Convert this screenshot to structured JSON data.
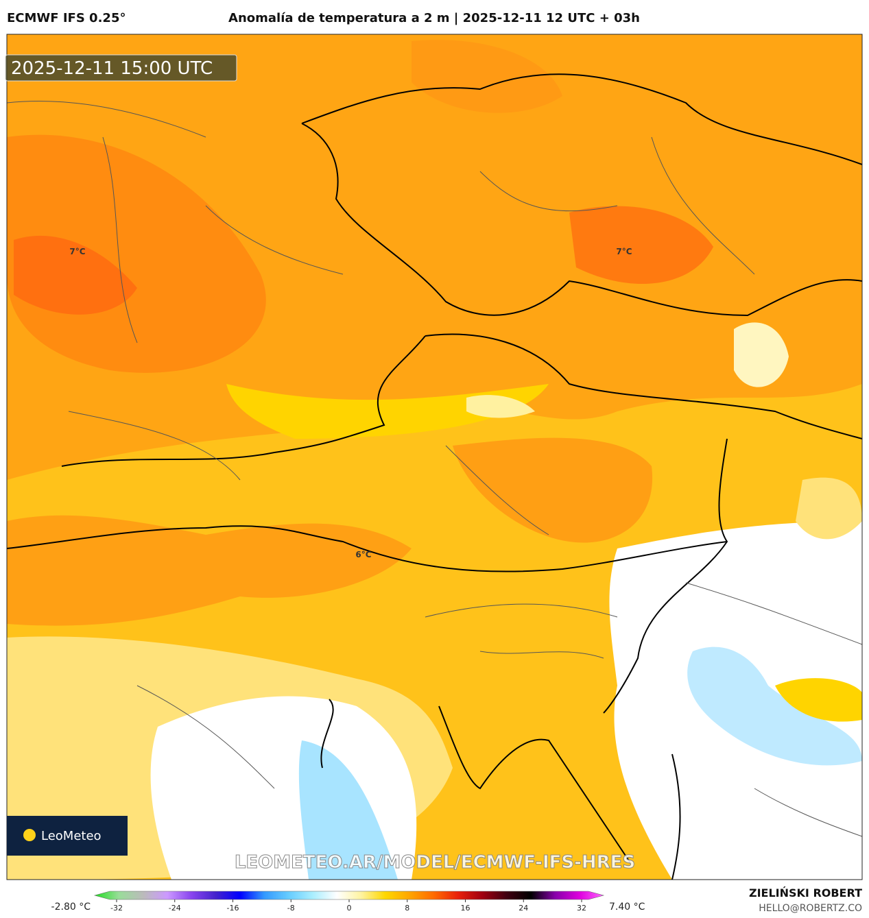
{
  "header": {
    "model": "ECMWF IFS 0.25°",
    "title": "Anomalía de temperatura a 2 m | 2025-12-11 12 UTC + 03h"
  },
  "map": {
    "valid_time": "2025-12-11 15:00 UTC",
    "contour_labels": [
      "7°C",
      "7°C",
      "6°C"
    ],
    "logo": "LeoMeteo",
    "watermark": "LEOMETEO.AR/MODEL/ECMWF-IFS-HRES"
  },
  "colorbar": {
    "min_label": "-2.80 °C",
    "max_label": "7.40 °C",
    "ticks": [
      -32,
      -24,
      -16,
      -8,
      0,
      8,
      16,
      24,
      32
    ],
    "colors": [
      "#22dd22",
      "#99dd99",
      "#bbbbbb",
      "#cc99ff",
      "#8844ee",
      "#4422cc",
      "#0000ff",
      "#3399ff",
      "#66ccff",
      "#aaeeff",
      "#ffffff",
      "#fff3a0",
      "#ffd700",
      "#ffa500",
      "#ff6a00",
      "#e8200a",
      "#a00010",
      "#400010",
      "#000000",
      "#8800aa",
      "#dd00dd",
      "#ff66ff"
    ]
  },
  "footer": {
    "author": "ZIELIŃSKI ROBERT",
    "contact": "HELLO@ROBERTZ.CO"
  }
}
